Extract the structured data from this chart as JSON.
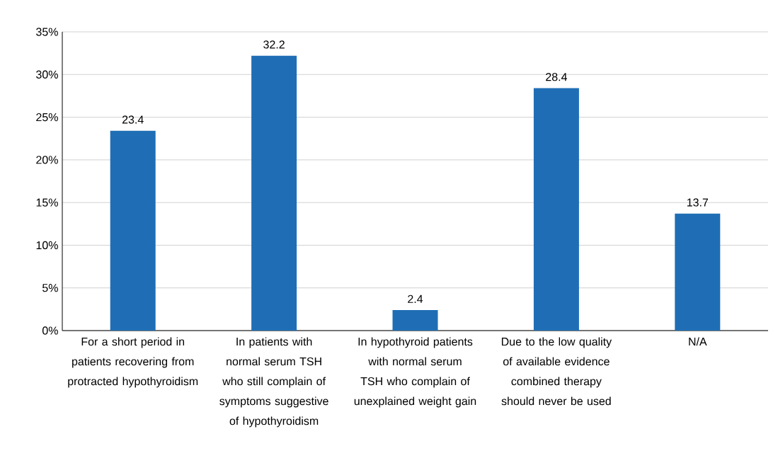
{
  "chart_data": {
    "type": "bar",
    "categories": [
      "For a short period in patients recovering from protracted hypothyroidism",
      "In patients with normal serum TSH who still complain of symptoms suggestive of hypothyroidism",
      "In hypothyroid patients with normal serum TSH who complain of unexplained weight gain",
      "Due to the low quality of available evidence combined therapy should never be used",
      "N/A"
    ],
    "values": [
      23.4,
      32.2,
      2.4,
      28.4,
      13.7
    ],
    "color": "#1f6eb5",
    "ylim": [
      0,
      35
    ],
    "yticks": [
      {
        "value": 0,
        "label": "0%"
      },
      {
        "value": 5,
        "label": "5%"
      },
      {
        "value": 10,
        "label": "10%"
      },
      {
        "value": 15,
        "label": "15%"
      },
      {
        "value": 20,
        "label": "20%"
      },
      {
        "value": 25,
        "label": "25%"
      },
      {
        "value": 30,
        "label": "30%"
      },
      {
        "value": 35,
        "label": "35%"
      }
    ],
    "grid": "y",
    "data_labels": true
  }
}
